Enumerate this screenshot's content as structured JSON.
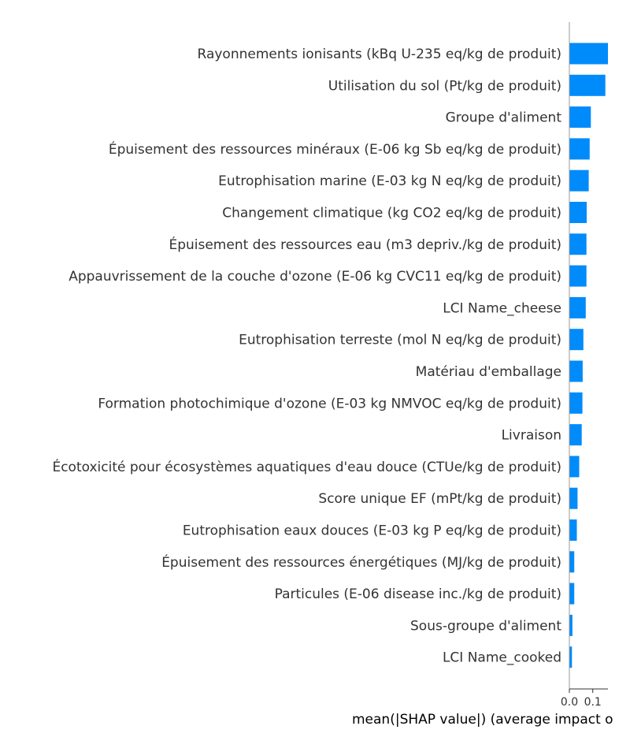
{
  "chart_data": {
    "type": "bar",
    "orientation": "horizontal",
    "xlabel": "mean(|SHAP value|) (average impact o",
    "bar_color": "#008bfb",
    "axis_color": "#999999",
    "text_color": "#333333",
    "xlim": [
      0,
      0.165
    ],
    "xticks": [
      {
        "value": 0.0,
        "label": "0.0"
      },
      {
        "value": 0.1,
        "label": "0.1"
      }
    ],
    "grid": false,
    "categories": [
      "Rayonnements ionisants (kBq U-235 eq/kg de produit)",
      "Utilisation du sol (Pt/kg de produit)",
      "Groupe d'aliment",
      "Épuisement des ressources minéraux (E-06 kg Sb eq/kg de produit)",
      "Eutrophisation marine (E-03 kg N eq/kg de produit)",
      "Changement climatique (kg CO2 eq/kg de produit)",
      "Épuisement des ressources eau (m3 depriv./kg de produit)",
      "Appauvrissement de la couche d'ozone (E-06 kg CVC11 eq/kg de produit)",
      "LCI Name_cheese",
      "Eutrophisation terreste (mol N eq/kg de produit)",
      "Matériau d'emballage",
      "Formation photochimique d'ozone (E-03 kg NMVOC eq/kg de produit)",
      "Livraison",
      "Écotoxicité pour écosystèmes aquatiques d'eau douce (CTUe/kg de produit)",
      "Score unique EF (mPt/kg de produit)",
      "Eutrophisation eaux douces (E-03 kg P eq/kg de produit)",
      "Épuisement des ressources énergétiques (MJ/kg de produit)",
      "Particules (E-06 disease inc./kg de produit)",
      "Sous-groupe d'aliment",
      "LCI Name_cooked"
    ],
    "values": [
      0.165,
      0.154,
      0.092,
      0.087,
      0.083,
      0.074,
      0.073,
      0.073,
      0.07,
      0.06,
      0.057,
      0.056,
      0.053,
      0.042,
      0.035,
      0.032,
      0.021,
      0.021,
      0.013,
      0.011
    ]
  }
}
